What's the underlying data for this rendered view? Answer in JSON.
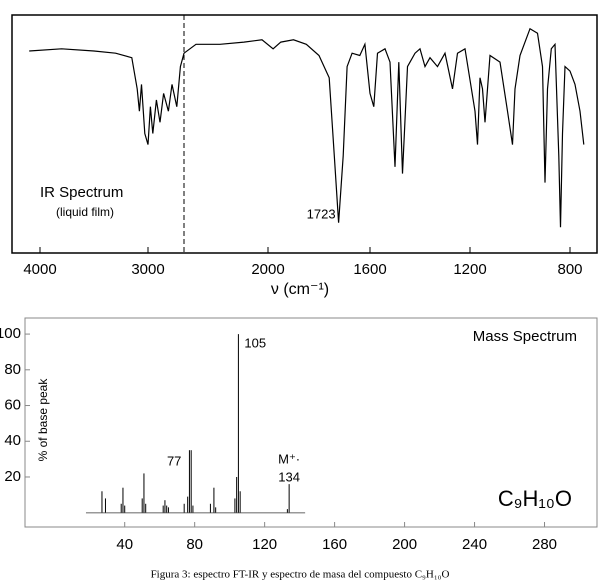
{
  "chart_data": [
    {
      "type": "line",
      "title": "IR Spectrum",
      "subtitle": "(liquid film)",
      "xlabel": "ν (cm⁻¹)",
      "xlim": [
        4250,
        700
      ],
      "ylim": [
        0,
        100
      ],
      "xticks": [
        4000,
        3000,
        2000,
        1600,
        1200,
        800
      ],
      "reference_line": 2700,
      "color": "#000000",
      "annotations": [
        {
          "text": "1723",
          "x": 1723
        }
      ],
      "x": [
        4100,
        3800,
        3500,
        3300,
        3150,
        3100,
        3080,
        3060,
        3030,
        3000,
        2980,
        2960,
        2930,
        2900,
        2870,
        2830,
        2800,
        2760,
        2730,
        2700,
        2600,
        2400,
        2200,
        2050,
        1980,
        1950,
        1900,
        1850,
        1800,
        1760,
        1740,
        1723,
        1705,
        1690,
        1670,
        1640,
        1620,
        1600,
        1585,
        1570,
        1540,
        1520,
        1500,
        1485,
        1470,
        1450,
        1420,
        1400,
        1380,
        1360,
        1330,
        1300,
        1270,
        1250,
        1220,
        1180,
        1170,
        1160,
        1150,
        1140,
        1120,
        1080,
        1050,
        1030,
        1020,
        1000,
        960,
        930,
        910,
        900,
        890,
        875,
        860,
        845,
        838,
        830,
        820,
        800,
        780,
        760,
        745
      ],
      "values": [
        87,
        88,
        87,
        86,
        84,
        70,
        60,
        72,
        50,
        45,
        62,
        50,
        65,
        55,
        68,
        60,
        72,
        62,
        80,
        86,
        90,
        90,
        91,
        92,
        88,
        91,
        92,
        90,
        85,
        75,
        40,
        10,
        40,
        80,
        86,
        85,
        90,
        68,
        62,
        86,
        88,
        82,
        35,
        82,
        32,
        80,
        86,
        88,
        80,
        84,
        80,
        86,
        70,
        86,
        88,
        60,
        45,
        75,
        70,
        55,
        85,
        82,
        60,
        45,
        70,
        85,
        97,
        95,
        80,
        28,
        70,
        88,
        90,
        40,
        8,
        50,
        80,
        78,
        72,
        60,
        45
      ]
    },
    {
      "type": "bar",
      "title": "Mass Spectrum",
      "formula": "C₉H₁₀O",
      "ylabel": "% of base peak",
      "xlim": [
        -17,
        310
      ],
      "ylim": [
        -8,
        109
      ],
      "xticks": [
        40,
        80,
        120,
        160,
        200,
        240,
        280
      ],
      "yticks": [
        20,
        40,
        60,
        80,
        100
      ],
      "color": "#000000",
      "annotations": [
        {
          "text": "105",
          "x": 105
        },
        {
          "text": "77",
          "x": 77
        },
        {
          "text": "M⁺·",
          "x": 134
        },
        {
          "text": "134",
          "x": 134
        }
      ],
      "x": [
        27,
        29,
        38,
        39,
        40,
        50,
        51,
        52,
        62,
        63,
        64,
        65,
        74,
        76,
        77,
        78,
        79,
        89,
        91,
        92,
        103,
        104,
        105,
        106,
        133,
        134
      ],
      "values": [
        12,
        8,
        5,
        14,
        4,
        8,
        22,
        5,
        4,
        7,
        4,
        3,
        5,
        9,
        35,
        35,
        4,
        5,
        14,
        3,
        8,
        20,
        100,
        12,
        2,
        16
      ]
    }
  ],
  "caption": "Figura 3: espectro FT-IR y espectro de masa del compuesto C₉H₁₀O"
}
